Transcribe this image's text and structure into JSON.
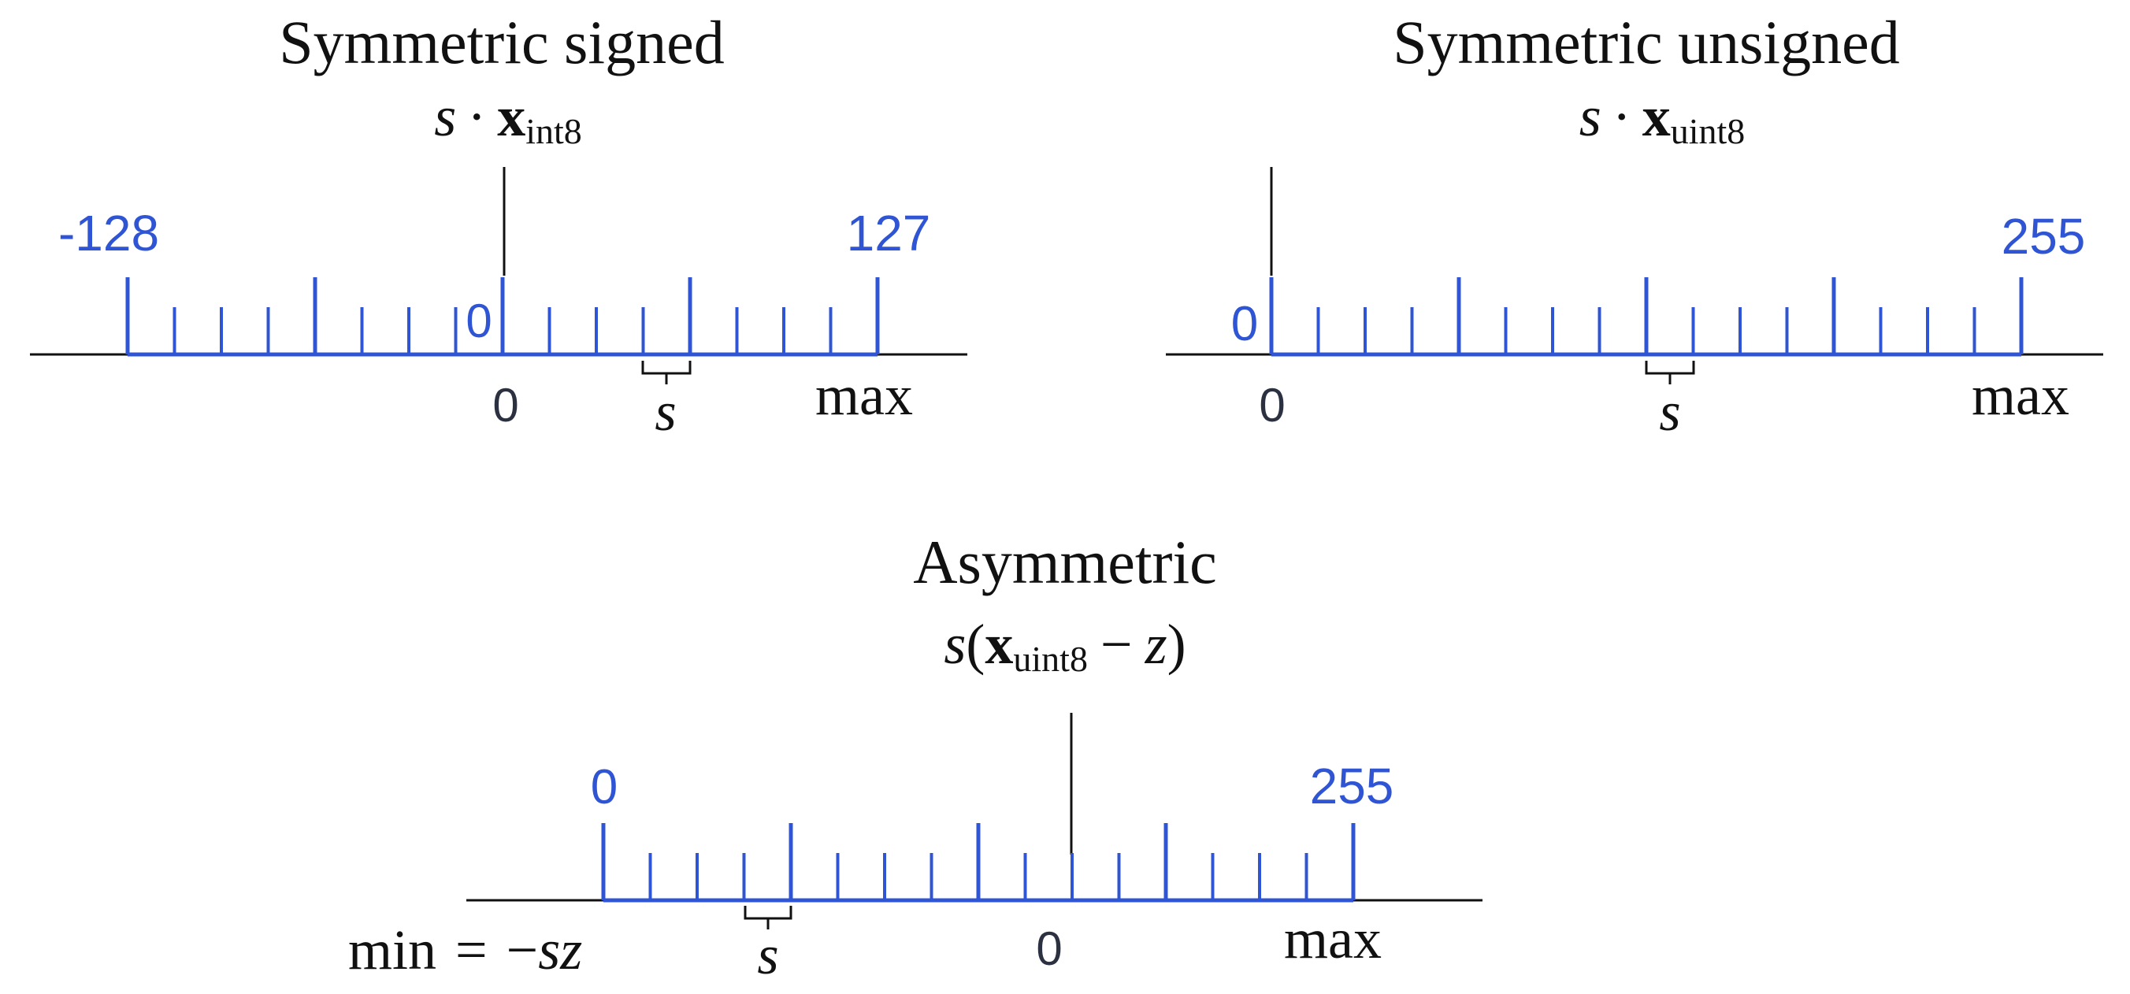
{
  "colors": {
    "tick": "#2f55d4",
    "axis": "#111111",
    "zero_text": "#2b3140"
  },
  "panels": {
    "signed": {
      "title": "Symmetric signed",
      "formula": {
        "var": "s",
        "op": "·",
        "vec": "x",
        "sub": "int8"
      },
      "range_min": "-128",
      "range_max": "127",
      "zero_code": "0",
      "real_zero": "0",
      "real_max": "max",
      "step": "s",
      "tick_count": 17,
      "major_every": 4
    },
    "unsigned": {
      "title": "Symmetric unsigned",
      "formula": {
        "var": "s",
        "op": "·",
        "vec": "x",
        "sub": "uint8"
      },
      "range_min": "0",
      "range_max": "255",
      "real_zero": "0",
      "real_max": "max",
      "step": "s",
      "tick_count": 17,
      "major_every": 4
    },
    "asymmetric": {
      "title": "Asymmetric",
      "formula": {
        "var": "s",
        "open": "(",
        "vec": "x",
        "sub": "uint8",
        "minus": "−",
        "z": "z",
        "close": ")"
      },
      "range_min": "0",
      "range_max": "255",
      "real_zero": "0",
      "real_max": "max",
      "real_min": {
        "word": "min",
        "eq": "=",
        "neg": "−",
        "sz": "sz"
      },
      "step": "s",
      "tick_count": 17,
      "major_every": 4
    }
  }
}
